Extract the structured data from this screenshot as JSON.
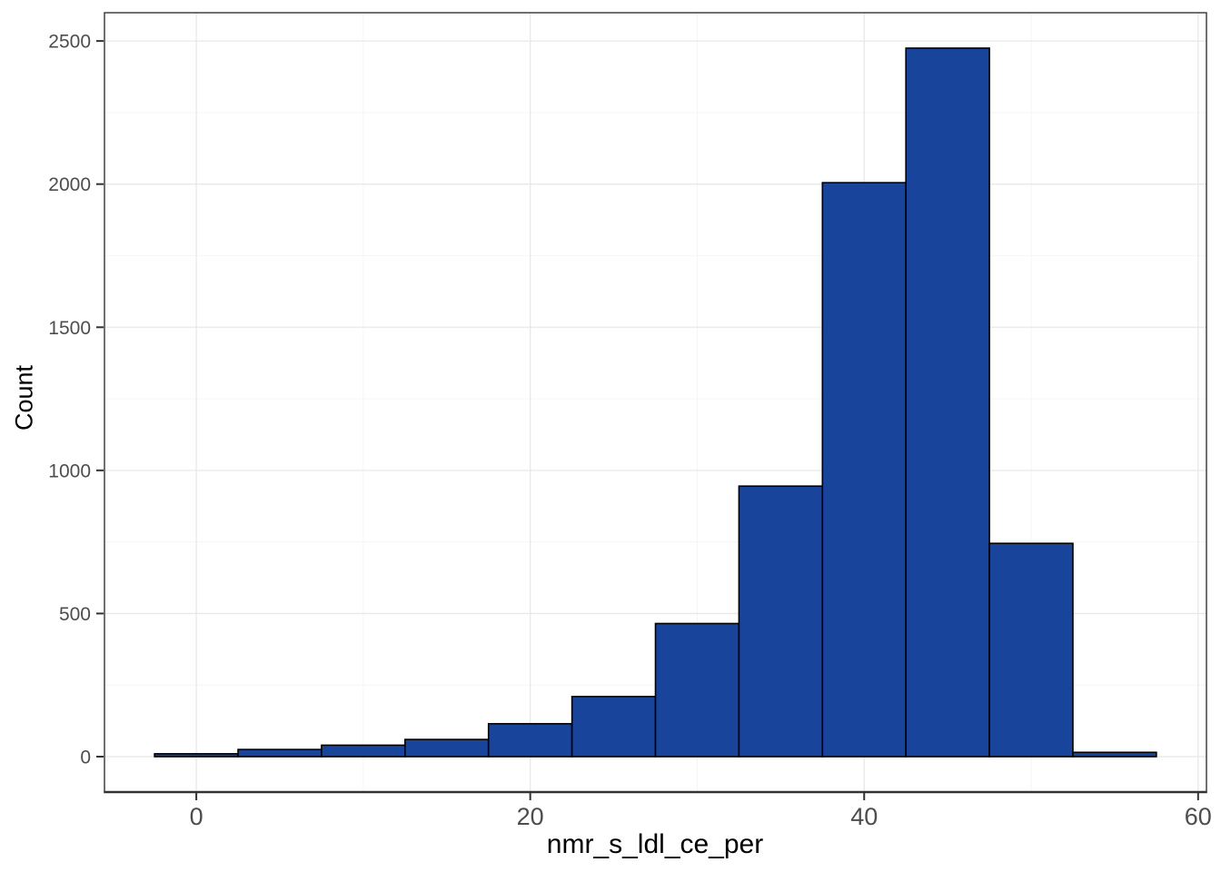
{
  "chart_data": {
    "type": "bar",
    "subtype": "histogram",
    "title": "",
    "xlabel": "nmr_s_ldl_ce_per",
    "ylabel": "Count",
    "bin_width": 5,
    "bin_edges": [
      -2.5,
      2.5,
      7.5,
      12.5,
      17.5,
      22.5,
      27.5,
      32.5,
      37.5,
      42.5,
      47.5,
      52.5,
      57.5
    ],
    "bin_centers": [
      0,
      5,
      10,
      15,
      20,
      25,
      30,
      35,
      40,
      45,
      50,
      55
    ],
    "counts": [
      10,
      25,
      40,
      60,
      115,
      210,
      465,
      945,
      2005,
      2475,
      745,
      15
    ],
    "x_ticks": [
      0,
      20,
      40,
      60
    ],
    "x_tick_labels": [
      "0",
      "20",
      "40",
      "60"
    ],
    "y_ticks": [
      0,
      500,
      1000,
      1500,
      2000,
      2500
    ],
    "y_tick_labels": [
      "0",
      "500",
      "1000",
      "1500",
      "2000",
      "2500"
    ],
    "x_minor_gridlines": [
      10,
      30,
      50
    ],
    "y_minor_gridlines": [
      250,
      750,
      1250,
      1750,
      2250
    ],
    "xlim": [
      -5.5,
      60.5
    ],
    "ylim": [
      -123.75,
      2598.75
    ],
    "grid": "major+minor",
    "legend": "none",
    "colors": {
      "bar_fill": "#19449b",
      "bar_stroke": "#000000",
      "panel_background": "#ffffff",
      "panel_border": "#333333",
      "grid_major": "#e8e8e8",
      "grid_minor": "#f4f4f4",
      "tick_mark": "#333333",
      "tick_label": "#4d4d4d",
      "axis_title": "#000000"
    }
  }
}
